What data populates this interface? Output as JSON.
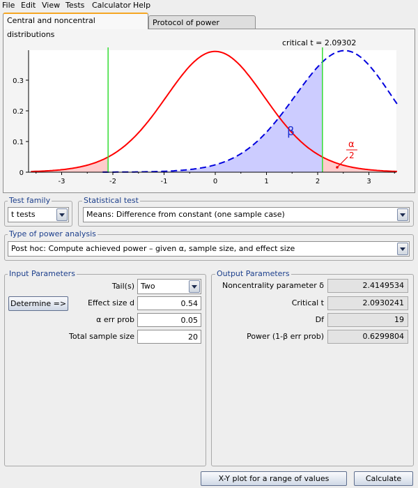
{
  "menu": [
    "File",
    "Edit",
    "View",
    "Tests",
    "Calculator",
    "Help"
  ],
  "tabs": [
    "Central and noncentral distributions",
    "Protocol of power analyses"
  ],
  "plot": {
    "critical_label": "critical t = 2.09302",
    "beta_label": "β",
    "alpha_label": "α",
    "alpha_denominator": "2",
    "y_ticks": [
      "0",
      "0.1",
      "0.2",
      "0.3"
    ],
    "x_ticks": [
      "-3",
      "-2",
      "-1",
      "0",
      "1",
      "2",
      "3"
    ],
    "colors": {
      "central": "#ff0000",
      "noncentral": "#0000dd",
      "critical": "#33dd33",
      "beta_fill": "#ccccff",
      "alpha_fill": "#ffcccc"
    }
  },
  "test_family": {
    "title": "Test family",
    "value": "t tests"
  },
  "statistical_test": {
    "title": "Statistical test",
    "value": "Means: Difference from constant (one sample case)"
  },
  "power_analysis": {
    "title": "Type of power analysis",
    "value": "Post hoc: Compute achieved power – given α, sample size, and effect size"
  },
  "input": {
    "title": "Input Parameters",
    "determine_label": "Determine =>",
    "tails_label": "Tail(s)",
    "tails_value": "Two",
    "effect_label": "Effect size d",
    "effect_value": "0.54",
    "alpha_label": "α err prob",
    "alpha_value": "0.05",
    "n_label": "Total sample size",
    "n_value": "20"
  },
  "output": {
    "title": "Output Parameters",
    "rows": [
      {
        "label": "Noncentrality parameter δ",
        "value": "2.4149534"
      },
      {
        "label": "Critical t",
        "value": "2.0930241"
      },
      {
        "label": "Df",
        "value": "19"
      },
      {
        "label": "Power (1-β err prob)",
        "value": "0.6299804"
      }
    ]
  },
  "buttons": {
    "xy_plot": "X-Y plot for a range of values",
    "calculate": "Calculate"
  }
}
